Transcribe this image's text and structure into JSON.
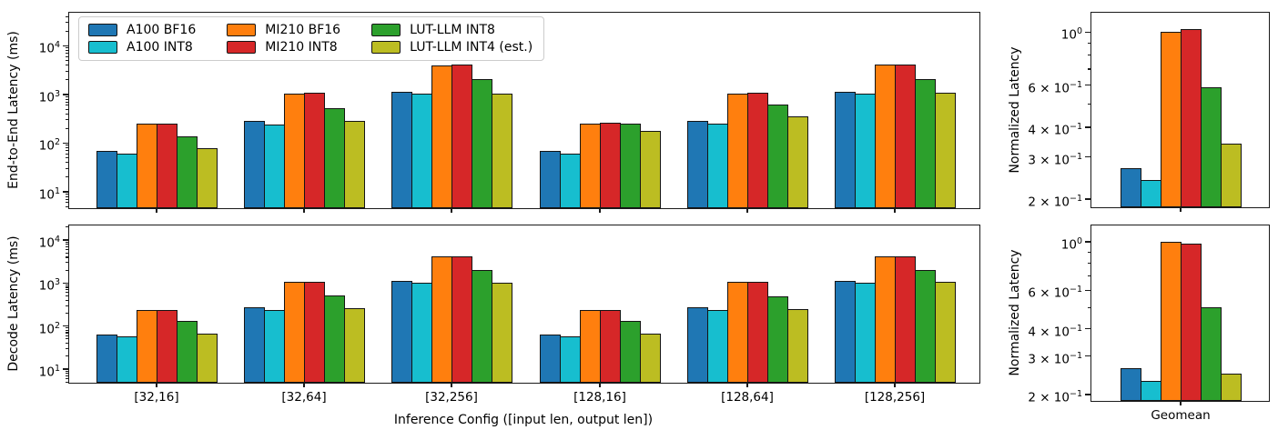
{
  "figure": {
    "title": "",
    "series": [
      {
        "name": "A100 BF16",
        "color": "#1f77b4"
      },
      {
        "name": "A100 INT8",
        "color": "#17becf"
      },
      {
        "name": "MI210 BF16",
        "color": "#ff7f0e"
      },
      {
        "name": "MI210 INT8",
        "color": "#d62728"
      },
      {
        "name": "LUT-LLM INT8",
        "color": "#2ca02c"
      },
      {
        "name": "LUT-LLM INT4 (est.)",
        "color": "#bcbd22"
      }
    ]
  },
  "chart_data": [
    {
      "id": "end_to_end",
      "type": "bar",
      "yscale": "log",
      "ylabel": "End-to-End Latency (ms)",
      "xlabel": "",
      "grid": false,
      "legend_position": "upper-left",
      "categories": [
        "[32,16]",
        "[32,64]",
        "[32,256]",
        "[128,16]",
        "[128,64]",
        "[128,256]"
      ],
      "show_xtick_labels": false,
      "ylim": [
        4.6,
        48000
      ],
      "yticks": [
        {
          "v": 10,
          "label": "10^1"
        },
        {
          "v": 100,
          "label": "10^2"
        },
        {
          "v": 1000,
          "label": "10^3"
        },
        {
          "v": 10000,
          "label": "10^4"
        }
      ],
      "series": [
        {
          "name": "A100 BF16",
          "values": [
            70,
            290,
            1150,
            70,
            290,
            1150
          ]
        },
        {
          "name": "A100 INT8",
          "values": [
            60,
            245,
            1020,
            60,
            250,
            1020
          ]
        },
        {
          "name": "MI210 BF16",
          "values": [
            250,
            1050,
            4000,
            250,
            1050,
            4100
          ]
        },
        {
          "name": "MI210 INT8",
          "values": [
            255,
            1080,
            4100,
            265,
            1100,
            4100
          ]
        },
        {
          "name": "LUT-LLM INT8",
          "values": [
            140,
            530,
            2100,
            250,
            620,
            2050
          ]
        },
        {
          "name": "LUT-LLM INT4 (est.)",
          "values": [
            80,
            290,
            1060,
            180,
            360,
            1100
          ]
        }
      ]
    },
    {
      "id": "decode",
      "type": "bar",
      "yscale": "log",
      "ylabel": "Decode Latency (ms)",
      "xlabel": "Inference Config ([input len, output len])",
      "grid": false,
      "categories": [
        "[32,16]",
        "[32,64]",
        "[32,256]",
        "[128,16]",
        "[128,64]",
        "[128,256]"
      ],
      "show_xtick_labels": true,
      "ylim": [
        4.8,
        22000
      ],
      "yticks": [
        {
          "v": 10,
          "label": "10^1"
        },
        {
          "v": 100,
          "label": "10^2"
        },
        {
          "v": 1000,
          "label": "10^3"
        },
        {
          "v": 10000,
          "label": "10^4"
        }
      ],
      "series": [
        {
          "name": "A100 BF16",
          "values": [
            65,
            280,
            1150,
            65,
            275,
            1150
          ]
        },
        {
          "name": "A100 INT8",
          "values": [
            57,
            240,
            1000,
            57,
            235,
            1000
          ]
        },
        {
          "name": "MI210 BF16",
          "values": [
            240,
            1050,
            4100,
            240,
            1050,
            4100
          ]
        },
        {
          "name": "MI210 INT8",
          "values": [
            240,
            1050,
            4150,
            238,
            1050,
            4100
          ]
        },
        {
          "name": "LUT-LLM INT8",
          "values": [
            130,
            510,
            2050,
            132,
            495,
            2000
          ]
        },
        {
          "name": "LUT-LLM INT4 (est.)",
          "values": [
            66,
            265,
            1020,
            66,
            250,
            1050
          ]
        }
      ]
    },
    {
      "id": "normalized_end_to_end",
      "type": "bar",
      "yscale": "log",
      "ylabel": "Normalized Latency",
      "xlabel": "",
      "grid": false,
      "categories": [
        ""
      ],
      "show_xtick_labels": false,
      "ylim": [
        0.185,
        1.205
      ],
      "yticks": [
        {
          "v": 1.0,
          "label": "10^0"
        },
        {
          "v": 0.6,
          "label": "6 × 10^-1"
        },
        {
          "v": 0.4,
          "label": "4 × 10^-1"
        },
        {
          "v": 0.3,
          "label": "3 × 10^-1"
        },
        {
          "v": 0.2,
          "label": "2 × 10^-1"
        }
      ],
      "series": [
        {
          "name": "A100 BF16",
          "values": [
            0.27
          ]
        },
        {
          "name": "A100 INT8",
          "values": [
            0.24
          ]
        },
        {
          "name": "MI210 BF16",
          "values": [
            1.0
          ]
        },
        {
          "name": "MI210 INT8",
          "values": [
            1.03
          ]
        },
        {
          "name": "LUT-LLM INT8",
          "values": [
            0.59
          ]
        },
        {
          "name": "LUT-LLM INT4 (est.)",
          "values": [
            0.34
          ]
        }
      ]
    },
    {
      "id": "normalized_decode",
      "type": "bar",
      "yscale": "log",
      "ylabel": "Normalized Latency",
      "xlabel": "",
      "grid": false,
      "categories": [
        "Geomean"
      ],
      "show_xtick_labels": true,
      "ylim": [
        0.187,
        1.19
      ],
      "yticks": [
        {
          "v": 1.0,
          "label": "10^0"
        },
        {
          "v": 0.6,
          "label": "6 × 10^-1"
        },
        {
          "v": 0.4,
          "label": "4 × 10^-1"
        },
        {
          "v": 0.3,
          "label": "3 × 10^-1"
        },
        {
          "v": 0.2,
          "label": "2 × 10^-1"
        }
      ],
      "series": [
        {
          "name": "A100 BF16",
          "values": [
            0.265
          ]
        },
        {
          "name": "A100 INT8",
          "values": [
            0.23
          ]
        },
        {
          "name": "MI210 BF16",
          "values": [
            1.0
          ]
        },
        {
          "name": "MI210 INT8",
          "values": [
            0.98
          ]
        },
        {
          "name": "LUT-LLM INT8",
          "values": [
            0.5
          ]
        },
        {
          "name": "LUT-LLM INT4 (est.)",
          "values": [
            0.25
          ]
        }
      ]
    }
  ]
}
